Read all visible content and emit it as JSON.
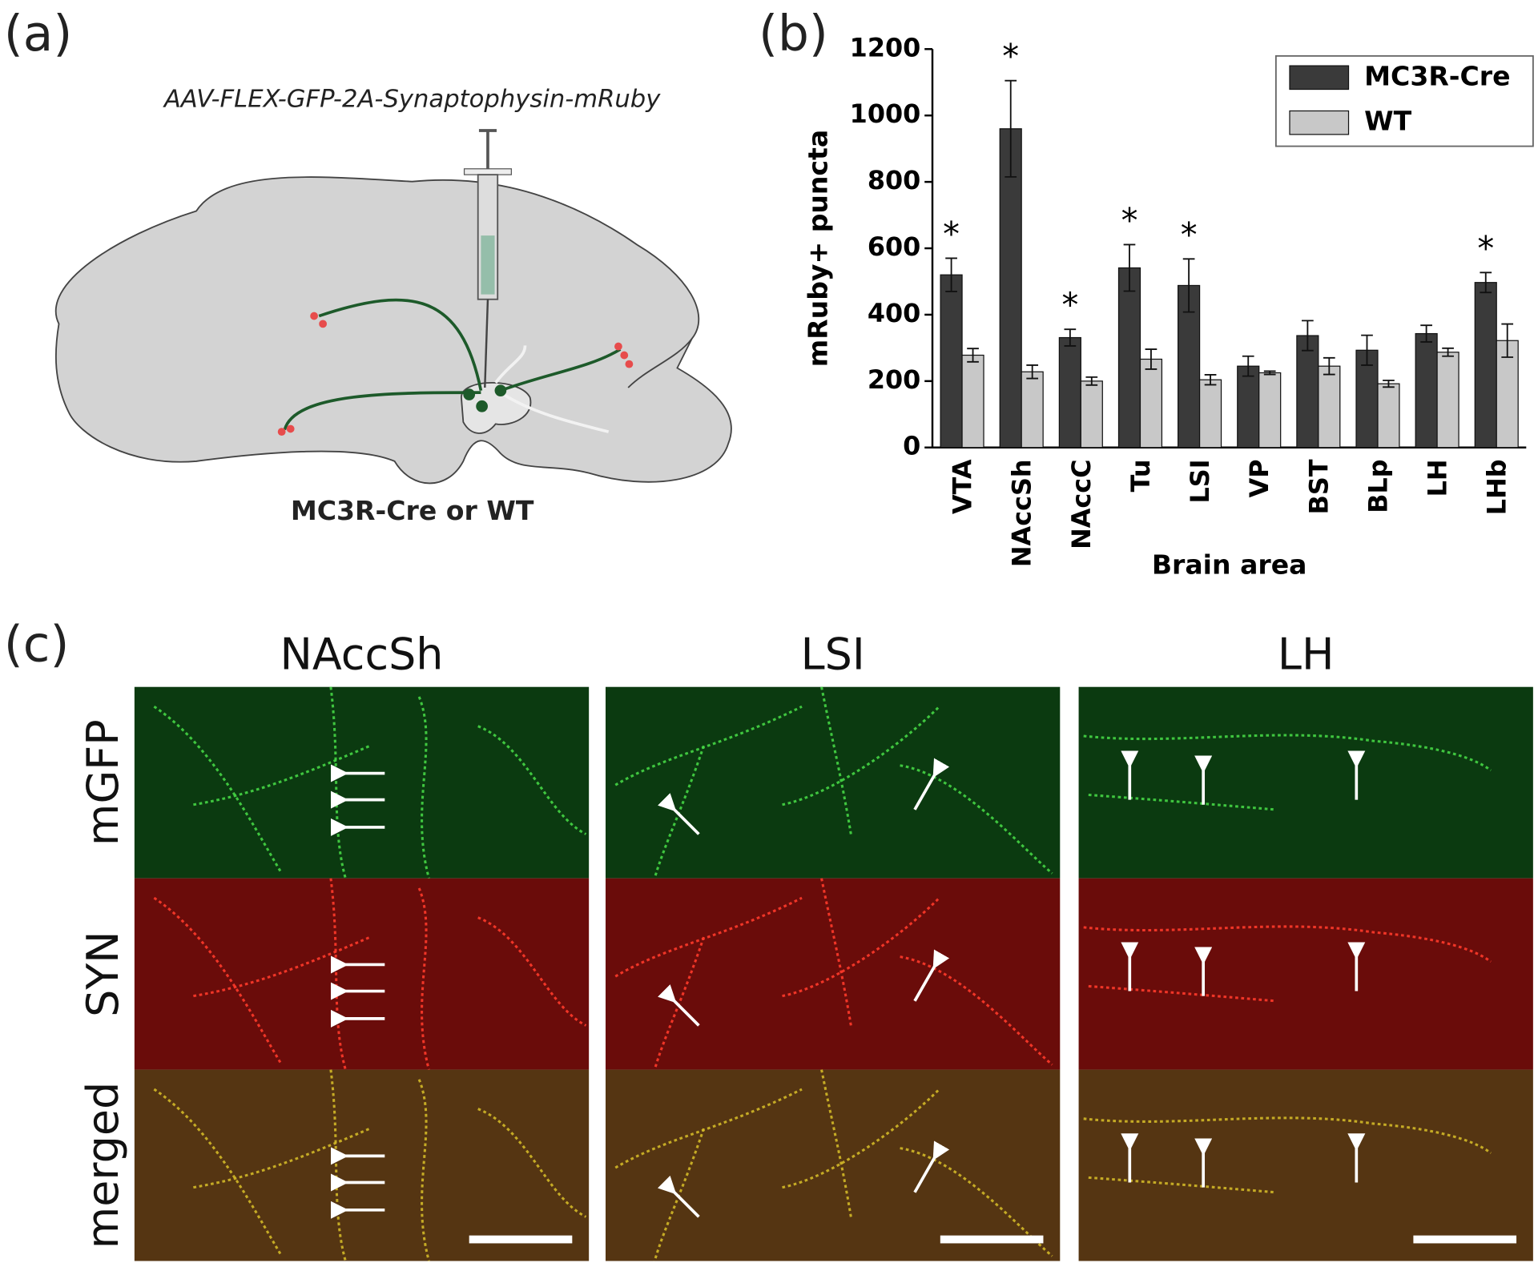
{
  "panel_a": {
    "label": "(a)",
    "vector": "AAV-FLEX-GFP-2A-Synaptophysin-mRuby",
    "caption": "MC3R-Cre or WT"
  },
  "panel_b": {
    "label": "(b)"
  },
  "panel_c": {
    "label": "(c)",
    "columns": [
      "NAccSh",
      "LSI",
      "LH"
    ],
    "rows": [
      "mGFP",
      "SYN",
      "merged"
    ]
  },
  "chart_data": {
    "type": "bar",
    "ylabel": "mRuby+ puncta",
    "xlabel": "Brain area",
    "categories": [
      "VTA",
      "NAccSh",
      "NAccC",
      "Tu",
      "LSI",
      "VP",
      "BST",
      "BLp",
      "LH",
      "LHb"
    ],
    "series": [
      {
        "name": "MC3R-Cre",
        "color": "#3a3a3a",
        "values": [
          520,
          960,
          331,
          541,
          488,
          245,
          337,
          293,
          343,
          497
        ],
        "errors": [
          50,
          145,
          25,
          70,
          80,
          30,
          45,
          45,
          25,
          30
        ]
      },
      {
        "name": "WT",
        "color": "#c8c8c8",
        "values": [
          278,
          228,
          200,
          266,
          204,
          225,
          245,
          192,
          287,
          322
        ],
        "errors": [
          20,
          20,
          12,
          30,
          15,
          5,
          25,
          10,
          12,
          50
        ]
      }
    ],
    "significance": [
      "*",
      "*",
      "*",
      "*",
      "*",
      null,
      null,
      null,
      null,
      "*"
    ],
    "ylim": [
      0,
      1200
    ],
    "yticks": [
      0,
      200,
      400,
      600,
      800,
      1000,
      1200
    ],
    "legend": "upper right"
  }
}
